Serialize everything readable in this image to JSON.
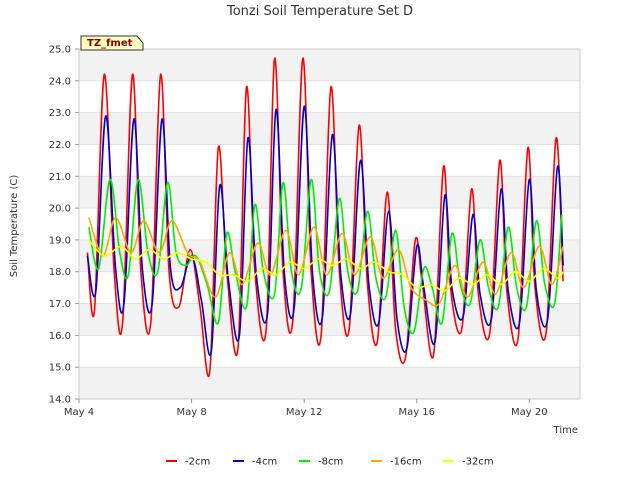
{
  "chart_data": {
    "type": "line",
    "title": "Tonzi Soil Temperature Set D",
    "xlabel": "Time",
    "ylabel": "Soil Temperature (C)",
    "badge": "TZ_fmet",
    "xlim": [
      4.0,
      21.8
    ],
    "ylim": [
      14.0,
      25.0
    ],
    "y_ticks": [
      "14.0",
      "15.0",
      "16.0",
      "17.0",
      "18.0",
      "19.0",
      "20.0",
      "21.0",
      "22.0",
      "23.0",
      "24.0",
      "25.0"
    ],
    "x_ticks": [
      {
        "value": 4,
        "label": "May 4"
      },
      {
        "value": 8,
        "label": "May 8"
      },
      {
        "value": 12,
        "label": "May 12"
      },
      {
        "value": 16,
        "label": "May 16"
      },
      {
        "value": 20,
        "label": "May 20"
      }
    ],
    "grid": "banded horizontal",
    "legend_position": "bottom",
    "series": [
      {
        "name": "-2cm",
        "color": "#ff0000",
        "width": 1.6,
        "x": [
          4.3,
          4.55,
          4.9,
          5.25,
          5.55,
          5.9,
          6.2,
          6.55,
          6.9,
          7.2,
          7.55,
          7.95,
          8.3,
          8.65,
          8.95,
          9.25,
          9.65,
          9.95,
          10.25,
          10.65,
          10.95,
          11.25,
          11.6,
          11.95,
          12.25,
          12.6,
          12.95,
          13.25,
          13.6,
          13.95,
          14.25,
          14.6,
          14.95,
          15.25,
          15.6,
          15.95,
          16.2,
          16.6,
          16.95,
          17.2,
          17.6,
          17.95,
          18.2,
          18.6,
          18.95,
          19.2,
          19.6,
          19.95,
          20.2,
          20.6,
          20.95,
          21.2
        ],
        "y": [
          18.6,
          16.8,
          24.2,
          18.0,
          16.4,
          24.2,
          18.0,
          16.4,
          24.2,
          18.0,
          16.9,
          18.7,
          16.9,
          14.9,
          21.9,
          18.0,
          15.6,
          23.8,
          18.0,
          16.2,
          24.7,
          18.0,
          16.5,
          24.7,
          18.0,
          16.0,
          23.8,
          18.0,
          16.2,
          22.6,
          17.6,
          15.8,
          20.5,
          16.2,
          15.3,
          19.0,
          17.6,
          15.4,
          21.3,
          17.5,
          16.2,
          20.6,
          17.2,
          16.1,
          21.5,
          17.4,
          15.9,
          21.9,
          17.5,
          16.1,
          22.2,
          17.7
        ]
      },
      {
        "name": "-4cm",
        "color": "#0000cc",
        "width": 1.6,
        "x": [
          4.3,
          4.6,
          4.95,
          5.3,
          5.6,
          5.95,
          6.25,
          6.6,
          6.95,
          7.25,
          7.6,
          8.0,
          8.35,
          8.7,
          9.0,
          9.3,
          9.7,
          10.0,
          10.3,
          10.7,
          11.0,
          11.3,
          11.65,
          12.0,
          12.3,
          12.65,
          13.0,
          13.3,
          13.65,
          14.0,
          14.3,
          14.65,
          15.0,
          15.3,
          15.65,
          16.0,
          16.25,
          16.65,
          17.0,
          17.25,
          17.65,
          18.0,
          18.25,
          18.65,
          19.0,
          19.25,
          19.65,
          20.0,
          20.25,
          20.65,
          21.0,
          21.2
        ],
        "y": [
          18.5,
          17.4,
          22.9,
          18.1,
          17.0,
          22.8,
          18.1,
          17.0,
          22.8,
          18.1,
          17.5,
          18.5,
          17.1,
          15.5,
          20.7,
          17.8,
          16.0,
          22.2,
          17.9,
          16.7,
          23.1,
          17.9,
          16.9,
          23.2,
          17.9,
          16.6,
          22.3,
          17.9,
          16.7,
          21.5,
          17.6,
          16.4,
          19.9,
          16.5,
          15.6,
          18.8,
          17.5,
          15.8,
          20.4,
          17.5,
          16.6,
          19.8,
          17.3,
          16.5,
          20.6,
          17.4,
          16.4,
          20.9,
          17.4,
          16.5,
          21.3,
          18.2
        ]
      },
      {
        "name": "-8cm",
        "color": "#00ee00",
        "width": 1.6,
        "x": [
          4.35,
          4.7,
          5.1,
          5.45,
          5.75,
          6.1,
          6.45,
          6.8,
          7.15,
          7.45,
          7.8,
          8.15,
          8.55,
          8.95,
          9.25,
          9.55,
          9.95,
          10.25,
          10.55,
          10.95,
          11.25,
          11.55,
          11.9,
          12.25,
          12.55,
          12.9,
          13.25,
          13.55,
          13.9,
          14.25,
          14.55,
          14.9,
          15.25,
          15.55,
          15.9,
          16.25,
          16.55,
          16.9,
          17.25,
          17.55,
          17.9,
          18.25,
          18.55,
          18.9,
          19.25,
          19.55,
          19.9,
          20.25,
          20.55,
          20.9,
          21.15
        ],
        "y": [
          19.4,
          18.1,
          20.9,
          18.6,
          17.9,
          20.9,
          18.6,
          18.0,
          20.8,
          18.6,
          18.2,
          18.5,
          17.6,
          16.4,
          19.2,
          18.0,
          16.9,
          20.1,
          18.0,
          17.3,
          20.8,
          18.0,
          17.5,
          20.9,
          18.0,
          17.4,
          20.3,
          18.0,
          17.4,
          19.9,
          17.8,
          17.2,
          19.3,
          16.9,
          16.1,
          18.1,
          17.5,
          16.4,
          19.2,
          17.6,
          17.0,
          19.0,
          17.5,
          16.9,
          19.4,
          17.5,
          16.9,
          19.6,
          17.6,
          17.0,
          19.8
        ]
      },
      {
        "name": "-16cm",
        "color": "#ffa500",
        "width": 1.6,
        "x": [
          4.35,
          4.85,
          5.3,
          5.85,
          6.3,
          6.85,
          7.3,
          7.85,
          8.3,
          8.85,
          9.35,
          9.8,
          10.35,
          10.8,
          11.35,
          11.8,
          12.35,
          12.8,
          13.35,
          13.8,
          14.35,
          14.8,
          15.35,
          15.8,
          16.35,
          16.8,
          17.35,
          17.8,
          18.35,
          18.8,
          19.35,
          19.8,
          20.35,
          20.8,
          21.2
        ],
        "y": [
          19.7,
          18.5,
          19.7,
          18.6,
          19.6,
          18.6,
          19.6,
          18.6,
          18.3,
          17.2,
          18.6,
          17.6,
          18.9,
          17.9,
          19.3,
          17.9,
          19.4,
          17.9,
          19.2,
          17.9,
          19.1,
          17.8,
          18.7,
          17.5,
          17.1,
          17.0,
          18.2,
          17.2,
          18.3,
          17.3,
          18.6,
          17.5,
          18.8,
          17.6,
          18.8
        ]
      },
      {
        "name": "-32cm",
        "color": "#ffff00",
        "width": 1.6,
        "x": [
          4.35,
          4.9,
          5.5,
          6.0,
          6.5,
          7.0,
          7.5,
          8.0,
          8.5,
          9.0,
          9.5,
          10.0,
          10.5,
          11.0,
          11.5,
          12.0,
          12.5,
          13.0,
          13.5,
          14.0,
          14.5,
          15.0,
          15.5,
          16.0,
          16.5,
          17.0,
          17.5,
          18.0,
          18.5,
          19.0,
          19.5,
          20.0,
          20.5,
          21.0,
          21.2
        ],
        "y": [
          19.0,
          18.5,
          18.8,
          18.4,
          18.7,
          18.4,
          18.6,
          18.4,
          18.3,
          17.9,
          17.9,
          17.7,
          18.1,
          17.9,
          18.3,
          18.1,
          18.4,
          18.2,
          18.4,
          18.1,
          18.3,
          18.0,
          17.9,
          17.5,
          17.6,
          17.4,
          17.8,
          17.6,
          17.9,
          17.6,
          18.0,
          17.7,
          18.1,
          17.8,
          18.0
        ]
      }
    ]
  }
}
